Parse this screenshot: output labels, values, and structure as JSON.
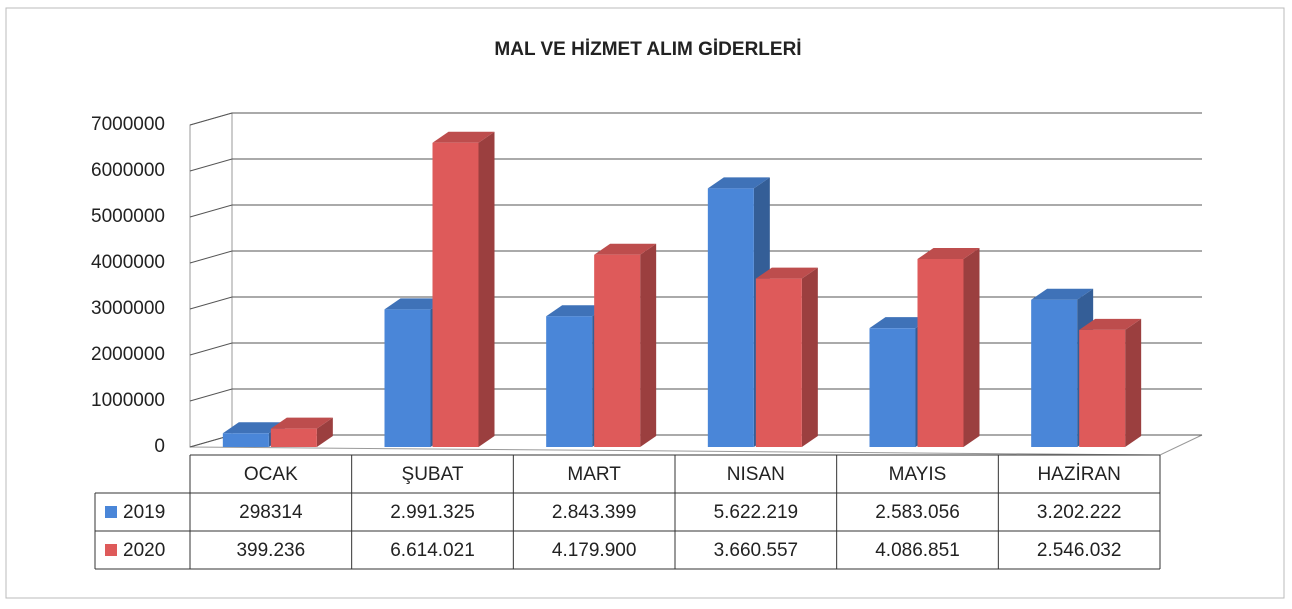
{
  "chart_data": {
    "type": "bar3d",
    "title": "MAL VE HİZMET ALIM GİDERLERİ",
    "categories": [
      "OCAK",
      "ŞUBAT",
      "MART",
      "NISAN",
      "MAYIS",
      "HAZİRAN"
    ],
    "series": [
      {
        "name": "2019",
        "color": "#4a86d8",
        "values": [
          298314,
          2991325,
          2843399,
          5622219,
          2583056,
          3202222
        ],
        "value_labels": [
          "298314",
          "2.991.325",
          "2.843.399",
          "5.622.219",
          "2.583.056",
          "3.202.222"
        ]
      },
      {
        "name": "2020",
        "color": "#de5a5a",
        "values": [
          399236,
          6614021,
          4179900,
          3660557,
          4086851,
          2546032
        ],
        "value_labels": [
          "399.236",
          "6.614.021",
          "4.179.900",
          "3.660.557",
          "4.086.851",
          "2.546.032"
        ]
      }
    ],
    "ylim": [
      0,
      7000000
    ],
    "yticks": [
      0,
      1000000,
      2000000,
      3000000,
      4000000,
      5000000,
      6000000,
      7000000
    ],
    "grid": true
  }
}
